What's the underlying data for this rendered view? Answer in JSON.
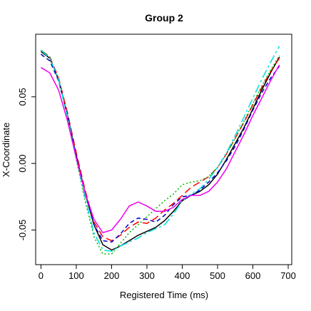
{
  "chart_data": {
    "type": "line",
    "title": "Group 2",
    "xlabel": "Registered Time (ms)",
    "ylabel": "X-Coordinate",
    "xlim": [
      -15,
      710
    ],
    "ylim": [
      -0.076,
      0.097
    ],
    "xticks": [
      {
        "value": 0,
        "label": "0"
      },
      {
        "value": 100,
        "label": "100"
      },
      {
        "value": 200,
        "label": "200"
      },
      {
        "value": 300,
        "label": "300"
      },
      {
        "value": 400,
        "label": "400"
      },
      {
        "value": 500,
        "label": "500"
      },
      {
        "value": 600,
        "label": "600"
      },
      {
        "value": 700,
        "label": "700"
      }
    ],
    "yticks": [
      {
        "value": -0.05,
        "label": "-0.05"
      },
      {
        "value": 0.0,
        "label": "0.00"
      },
      {
        "value": 0.05,
        "label": "0.05"
      }
    ],
    "grid": false,
    "legend": "none",
    "series": [
      {
        "color": "#000000",
        "dash": "solid",
        "x": [
          0,
          25,
          50,
          75,
          100,
          125,
          150,
          175,
          200,
          225,
          250,
          275,
          300,
          325,
          350,
          375,
          400,
          425,
          450,
          475,
          500,
          525,
          550,
          575,
          600,
          625,
          650,
          675
        ],
        "y": [
          0.084,
          0.079,
          0.063,
          0.036,
          0.006,
          -0.022,
          -0.046,
          -0.061,
          -0.065,
          -0.062,
          -0.058,
          -0.054,
          -0.051,
          -0.048,
          -0.043,
          -0.036,
          -0.028,
          -0.024,
          -0.021,
          -0.016,
          -0.008,
          0.003,
          0.015,
          0.027,
          0.041,
          0.055,
          0.068,
          0.08
        ]
      },
      {
        "color": "#ff0000",
        "dash": "10,5",
        "x": [
          0,
          25,
          50,
          75,
          100,
          125,
          150,
          175,
          200,
          225,
          250,
          275,
          300,
          325,
          350,
          375,
          400,
          425,
          450,
          475,
          500,
          525,
          550,
          575,
          600,
          625,
          650,
          675
        ],
        "y": [
          0.085,
          0.08,
          0.064,
          0.038,
          0.008,
          -0.02,
          -0.044,
          -0.055,
          -0.058,
          -0.054,
          -0.048,
          -0.044,
          -0.045,
          -0.041,
          -0.035,
          -0.03,
          -0.024,
          -0.018,
          -0.014,
          -0.01,
          -0.003,
          0.007,
          0.019,
          0.031,
          0.044,
          0.057,
          0.069,
          0.079
        ]
      },
      {
        "color": "#00bb00",
        "dash": "2,3",
        "x": [
          0,
          25,
          50,
          75,
          100,
          125,
          150,
          175,
          200,
          225,
          250,
          275,
          300,
          325,
          350,
          375,
          400,
          425,
          450,
          475,
          500,
          525,
          550,
          575,
          600,
          625,
          650,
          675
        ],
        "y": [
          0.085,
          0.08,
          0.062,
          0.035,
          0.003,
          -0.028,
          -0.055,
          -0.068,
          -0.068,
          -0.06,
          -0.052,
          -0.046,
          -0.04,
          -0.034,
          -0.028,
          -0.023,
          -0.016,
          -0.014,
          -0.013,
          -0.01,
          -0.003,
          0.007,
          0.019,
          0.032,
          0.045,
          0.058,
          0.07,
          0.081
        ]
      },
      {
        "color": "#0000cc",
        "dash": "6,4",
        "x": [
          0,
          25,
          50,
          75,
          100,
          125,
          150,
          175,
          200,
          225,
          250,
          275,
          300,
          325,
          350,
          375,
          400,
          425,
          450,
          475,
          500,
          525,
          550,
          575,
          600,
          625,
          650,
          675
        ],
        "y": [
          0.082,
          0.077,
          0.062,
          0.036,
          0.006,
          -0.022,
          -0.046,
          -0.058,
          -0.059,
          -0.053,
          -0.045,
          -0.041,
          -0.042,
          -0.044,
          -0.039,
          -0.031,
          -0.025,
          -0.024,
          -0.02,
          -0.014,
          -0.007,
          0.002,
          0.013,
          0.026,
          0.04,
          0.053,
          0.064,
          0.073
        ]
      },
      {
        "color": "#00dddd",
        "dash": "12,4,3,4",
        "x": [
          0,
          25,
          50,
          75,
          100,
          125,
          150,
          175,
          200,
          225,
          250,
          275,
          300,
          325,
          350,
          375,
          400,
          425,
          450,
          475,
          500,
          525,
          550,
          575,
          600,
          625,
          650,
          675
        ],
        "y": [
          0.085,
          0.079,
          0.063,
          0.035,
          0.004,
          -0.026,
          -0.052,
          -0.065,
          -0.066,
          -0.062,
          -0.059,
          -0.056,
          -0.052,
          -0.049,
          -0.046,
          -0.038,
          -0.028,
          -0.023,
          -0.019,
          -0.012,
          -0.003,
          0.008,
          0.021,
          0.035,
          0.049,
          0.063,
          0.076,
          0.088
        ]
      },
      {
        "color": "#ee00ee",
        "dash": "solid",
        "x": [
          0,
          25,
          50,
          75,
          100,
          125,
          150,
          175,
          200,
          225,
          250,
          275,
          300,
          325,
          350,
          375,
          400,
          425,
          450,
          475,
          500,
          525,
          550,
          575,
          600,
          625,
          650,
          675
        ],
        "y": [
          0.072,
          0.068,
          0.055,
          0.032,
          0.004,
          -0.022,
          -0.042,
          -0.052,
          -0.05,
          -0.042,
          -0.032,
          -0.029,
          -0.032,
          -0.036,
          -0.036,
          -0.033,
          -0.027,
          -0.024,
          -0.024,
          -0.021,
          -0.014,
          -0.004,
          0.009,
          0.022,
          0.036,
          0.049,
          0.062,
          0.074
        ]
      }
    ]
  }
}
